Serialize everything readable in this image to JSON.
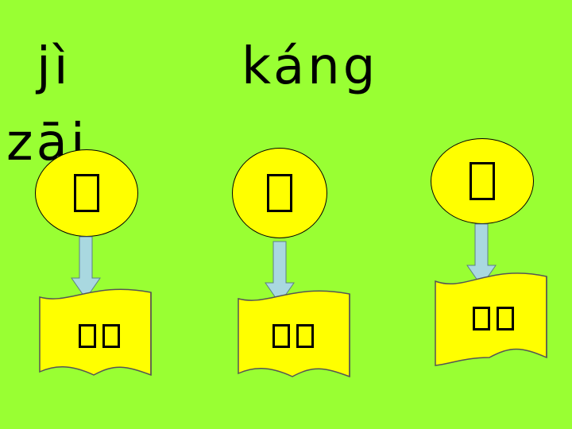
{
  "pinyin": {
    "first": "jì",
    "second": "káng",
    "third": "zāi"
  },
  "cards": [
    {
      "character": "",
      "word": [
        "",
        ""
      ]
    },
    {
      "character": "",
      "word": [
        "",
        ""
      ]
    },
    {
      "character": "",
      "word": [
        "",
        ""
      ]
    }
  ],
  "colors": {
    "background": "#99ff33",
    "card_fill": "#ffff00",
    "arrow_fill": "#a9d8e0"
  }
}
